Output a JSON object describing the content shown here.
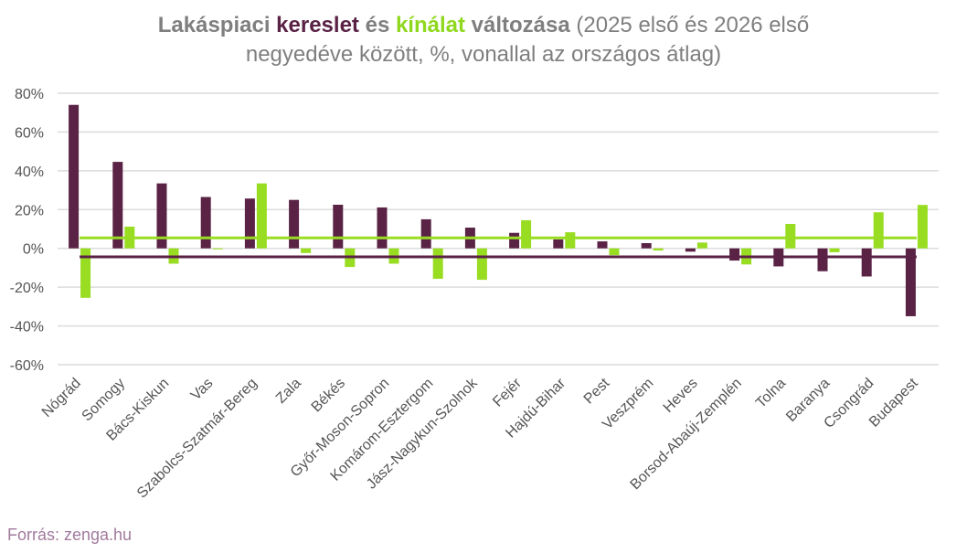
{
  "chart_data": {
    "type": "bar",
    "title": {
      "part1": "Lakáspiaci ",
      "part2": "kereslet",
      "part3": " és ",
      "part4": "kínálat",
      "part5": " változása",
      "part6": " (2025 első és 2026 első",
      "line2": "negyedéve között, %, vonallal az országos átlag)"
    },
    "categories": [
      "Nógrád",
      "Somogy",
      "Bács-Kiskun",
      "Vas",
      "Szabolcs-Szatmár-Bereg",
      "Zala",
      "Békés",
      "Győr-Moson-Sopron",
      "Komárom-Esztergom",
      "Jász-Nagykun-Szolnok",
      "Fejér",
      "Hajdú-Bihar",
      "Pest",
      "Veszprém",
      "Heves",
      "Borsod-Abaúj-Zemplén",
      "Tolna",
      "Baranya",
      "Csongrád",
      "Budapest"
    ],
    "series": [
      {
        "name": "kereslet",
        "color": "#5a2346",
        "values": [
          74.0,
          44.6,
          33.5,
          26.5,
          25.7,
          25.0,
          22.5,
          21.1,
          15.0,
          10.7,
          8.0,
          4.6,
          3.6,
          2.7,
          -1.7,
          -6.3,
          -9.3,
          -11.8,
          -14.5,
          -35.0
        ],
        "average": -4.4
      },
      {
        "name": "kínálat",
        "color": "#99dd22",
        "values": [
          -25.5,
          11.2,
          -7.9,
          -0.5,
          33.5,
          -2.4,
          -9.6,
          -7.9,
          -15.7,
          -16.2,
          14.5,
          8.3,
          -3.5,
          -1.1,
          3.0,
          -8.3,
          12.6,
          -2.0,
          18.6,
          22.4
        ],
        "average": 5.4
      }
    ],
    "ylim": [
      -60,
      80
    ],
    "yticks": [
      "80%",
      "60%",
      "40%",
      "20%",
      "0%",
      "-20%",
      "-40%",
      "-60%"
    ],
    "ytick_values": [
      80,
      60,
      40,
      20,
      0,
      -20,
      -40,
      -60
    ],
    "grid": true,
    "title_gray": "#7f7f7f"
  },
  "source": "Forrás: zenga.hu"
}
